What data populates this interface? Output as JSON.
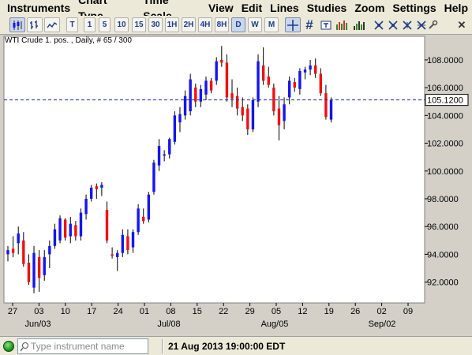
{
  "menu": [
    "Instruments",
    "Chart Type",
    "Time Scale",
    "View",
    "Edit",
    "Lines",
    "Studies",
    "Zoom",
    "Settings",
    "Help"
  ],
  "toolbar": {
    "timescale_buttons": [
      "T",
      "1",
      "5",
      "10",
      "15",
      "30",
      "1H",
      "2H",
      "4H",
      "8H",
      "D",
      "W",
      "M"
    ],
    "active_timescale": "D",
    "crosshair_icon": "crosshair-icon",
    "grid_icon": "grid-icon",
    "tool_icons": [
      "candles-icon",
      "bar-chart-icon",
      "line-chart-icon",
      "trend-line-icon",
      "channel-icon",
      "fib-icon",
      "cycle-icon",
      "fan-icon",
      "text-icon",
      "settings-wrench-icon",
      "close-icon"
    ]
  },
  "chart_header": "WTI Crude 1. pos. , Daily, # 65 / 300",
  "current_price_label": "105.1200",
  "status": {
    "instrument_placeholder": "Type instrument name",
    "datetime": "21 Aug 2013 19:00:00 EDT"
  },
  "colors": {
    "up": "#1515ee",
    "down": "#ee1111",
    "wick": "#000000",
    "price_line": "#1c2fb0"
  },
  "chart_data": {
    "type": "candlestick",
    "title": "WTI Crude 1. pos. , Daily, # 65 / 300",
    "ylim": [
      90.5,
      109.7
    ],
    "y_ticks": [
      "108.0000",
      "106.0000",
      "104.0000",
      "102.0000",
      "100.0000",
      "98.0000",
      "96.0000",
      "94.0000",
      "92.0000"
    ],
    "x_tick_labels": [
      "27",
      "03",
      "10",
      "17",
      "24",
      "01",
      "08",
      "15",
      "22",
      "29",
      "05",
      "12",
      "19",
      "26",
      "02",
      "09"
    ],
    "x_month_labels": [
      "Jun/03",
      "Jul/08",
      "Aug/05",
      "Sep/02"
    ],
    "current_price": 105.12,
    "candles": [
      {
        "o": 94.0,
        "h": 94.6,
        "l": 93.5,
        "c": 94.3
      },
      {
        "o": 94.4,
        "h": 95.3,
        "l": 93.8,
        "c": 94.1
      },
      {
        "o": 94.8,
        "h": 96.0,
        "l": 94.0,
        "c": 95.5
      },
      {
        "o": 95.0,
        "h": 95.6,
        "l": 93.1,
        "c": 93.3
      },
      {
        "o": 93.4,
        "h": 94.0,
        "l": 91.8,
        "c": 92.0
      },
      {
        "o": 91.6,
        "h": 94.6,
        "l": 91.2,
        "c": 94.1
      },
      {
        "o": 93.8,
        "h": 94.3,
        "l": 91.3,
        "c": 92.3
      },
      {
        "o": 92.5,
        "h": 94.3,
        "l": 92.1,
        "c": 93.8
      },
      {
        "o": 94.0,
        "h": 95.0,
        "l": 93.0,
        "c": 94.6
      },
      {
        "o": 94.6,
        "h": 96.2,
        "l": 94.4,
        "c": 95.8
      },
      {
        "o": 95.0,
        "h": 96.8,
        "l": 94.8,
        "c": 96.6
      },
      {
        "o": 96.5,
        "h": 96.6,
        "l": 95.0,
        "c": 95.2
      },
      {
        "o": 95.3,
        "h": 96.7,
        "l": 94.8,
        "c": 96.2
      },
      {
        "o": 96.1,
        "h": 96.4,
        "l": 95.0,
        "c": 95.3
      },
      {
        "o": 95.3,
        "h": 97.3,
        "l": 95.0,
        "c": 97.0
      },
      {
        "o": 96.9,
        "h": 98.3,
        "l": 96.5,
        "c": 98.0
      },
      {
        "o": 98.0,
        "h": 99.0,
        "l": 97.8,
        "c": 98.8
      },
      {
        "o": 98.9,
        "h": 99.1,
        "l": 98.0,
        "c": 98.7
      },
      {
        "o": 98.8,
        "h": 99.2,
        "l": 98.2,
        "c": 99.0
      },
      {
        "o": 97.2,
        "h": 97.8,
        "l": 94.8,
        "c": 95.0
      },
      {
        "o": 94.0,
        "h": 94.5,
        "l": 93.7,
        "c": 93.9
      },
      {
        "o": 93.8,
        "h": 94.3,
        "l": 92.8,
        "c": 94.1
      },
      {
        "o": 94.1,
        "h": 95.8,
        "l": 93.8,
        "c": 95.4
      },
      {
        "o": 95.3,
        "h": 95.8,
        "l": 94.0,
        "c": 94.3
      },
      {
        "o": 94.5,
        "h": 95.8,
        "l": 94.1,
        "c": 95.6
      },
      {
        "o": 95.6,
        "h": 97.6,
        "l": 95.4,
        "c": 97.3
      },
      {
        "o": 96.7,
        "h": 97.3,
        "l": 96.2,
        "c": 96.4
      },
      {
        "o": 96.5,
        "h": 98.5,
        "l": 96.3,
        "c": 98.3
      },
      {
        "o": 98.5,
        "h": 100.8,
        "l": 98.3,
        "c": 100.6
      },
      {
        "o": 100.4,
        "h": 102.3,
        "l": 100.0,
        "c": 101.8
      },
      {
        "o": 101.1,
        "h": 101.5,
        "l": 100.7,
        "c": 101.2
      },
      {
        "o": 101.2,
        "h": 102.4,
        "l": 100.9,
        "c": 102.3
      },
      {
        "o": 102.1,
        "h": 104.3,
        "l": 101.9,
        "c": 104.0
      },
      {
        "o": 103.5,
        "h": 104.6,
        "l": 102.8,
        "c": 104.1
      },
      {
        "o": 104.0,
        "h": 105.8,
        "l": 103.7,
        "c": 105.4
      },
      {
        "o": 104.3,
        "h": 107.0,
        "l": 104.0,
        "c": 106.6
      },
      {
        "o": 106.0,
        "h": 106.3,
        "l": 104.6,
        "c": 105.0
      },
      {
        "o": 105.0,
        "h": 106.2,
        "l": 104.6,
        "c": 105.9
      },
      {
        "o": 105.5,
        "h": 106.8,
        "l": 105.1,
        "c": 106.5
      },
      {
        "o": 106.5,
        "h": 106.7,
        "l": 105.6,
        "c": 105.8
      },
      {
        "o": 106.5,
        "h": 108.2,
        "l": 106.2,
        "c": 107.9
      },
      {
        "o": 108.0,
        "h": 109.0,
        "l": 107.5,
        "c": 107.8
      },
      {
        "o": 107.8,
        "h": 108.4,
        "l": 105.0,
        "c": 105.3
      },
      {
        "o": 105.6,
        "h": 106.6,
        "l": 104.6,
        "c": 105.2
      },
      {
        "o": 105.4,
        "h": 106.0,
        "l": 104.0,
        "c": 104.5
      },
      {
        "o": 104.6,
        "h": 105.3,
        "l": 103.6,
        "c": 104.0
      },
      {
        "o": 104.5,
        "h": 104.8,
        "l": 102.6,
        "c": 103.0
      },
      {
        "o": 103.0,
        "h": 105.3,
        "l": 102.8,
        "c": 105.1
      },
      {
        "o": 105.0,
        "h": 108.4,
        "l": 104.6,
        "c": 107.9
      },
      {
        "o": 107.6,
        "h": 108.9,
        "l": 106.2,
        "c": 106.5
      },
      {
        "o": 106.8,
        "h": 107.5,
        "l": 106.0,
        "c": 106.2
      },
      {
        "o": 106.0,
        "h": 106.3,
        "l": 104.0,
        "c": 104.3
      },
      {
        "o": 104.5,
        "h": 105.4,
        "l": 102.2,
        "c": 103.3
      },
      {
        "o": 103.6,
        "h": 105.3,
        "l": 103.0,
        "c": 104.8
      },
      {
        "o": 105.3,
        "h": 106.8,
        "l": 104.8,
        "c": 106.5
      },
      {
        "o": 106.4,
        "h": 106.7,
        "l": 105.7,
        "c": 106.0
      },
      {
        "o": 105.9,
        "h": 107.4,
        "l": 105.5,
        "c": 107.2
      },
      {
        "o": 107.1,
        "h": 107.5,
        "l": 106.6,
        "c": 107.3
      },
      {
        "o": 107.3,
        "h": 108.0,
        "l": 106.9,
        "c": 107.6
      },
      {
        "o": 107.6,
        "h": 108.1,
        "l": 106.7,
        "c": 107.0
      },
      {
        "o": 107.0,
        "h": 107.4,
        "l": 105.4,
        "c": 105.6
      },
      {
        "o": 105.6,
        "h": 106.2,
        "l": 103.7,
        "c": 103.9
      },
      {
        "o": 103.7,
        "h": 105.3,
        "l": 103.5,
        "c": 105.1
      }
    ]
  }
}
